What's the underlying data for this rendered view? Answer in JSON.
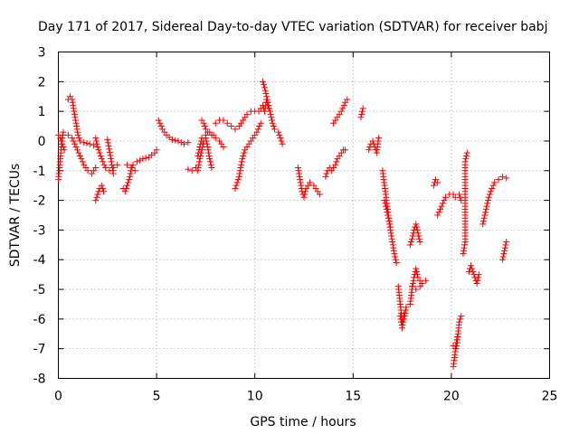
{
  "chart_data": {
    "type": "scatter",
    "title": "Day 171 of 2017, Sidereal Day-to-day VTEC variation (SDTVAR) for receiver babj",
    "xlabel": "GPS time / hours",
    "ylabel": "SDTVAR / TECUs",
    "xlim": [
      0,
      25
    ],
    "ylim": [
      -8,
      3
    ],
    "xticks": [
      0,
      5,
      10,
      15,
      20,
      25
    ],
    "yticks": [
      -8,
      -7,
      -6,
      -5,
      -4,
      -3,
      -2,
      -1,
      0,
      1,
      2,
      3
    ],
    "grid": true,
    "marker": "+",
    "color": "#ff0000",
    "series": [
      {
        "name": "SDTVAR",
        "segments": [
          [
            [
              0.0,
              -1.3
            ],
            [
              0.05,
              -1.0
            ],
            [
              0.1,
              -0.6
            ],
            [
              0.15,
              -0.2
            ],
            [
              0.2,
              0.1
            ],
            [
              0.25,
              0.3
            ]
          ],
          [
            [
              0.0,
              0.2
            ],
            [
              0.1,
              0.1
            ],
            [
              0.2,
              -0.1
            ],
            [
              0.3,
              -0.3
            ]
          ],
          [
            [
              0.5,
              0.2
            ],
            [
              0.7,
              0.1
            ],
            [
              0.9,
              -0.2
            ],
            [
              1.1,
              -0.5
            ],
            [
              1.3,
              -0.8
            ],
            [
              1.5,
              -1.0
            ],
            [
              1.7,
              -1.1
            ],
            [
              1.9,
              -0.9
            ]
          ],
          [
            [
              0.5,
              1.4
            ],
            [
              0.6,
              1.5
            ],
            [
              0.7,
              1.4
            ],
            [
              0.8,
              1.0
            ],
            [
              0.9,
              0.6
            ],
            [
              1.0,
              0.2
            ],
            [
              1.1,
              0.0
            ],
            [
              1.3,
              -0.05
            ],
            [
              1.6,
              -0.1
            ],
            [
              1.8,
              -0.15
            ]
          ],
          [
            [
              1.9,
              -2.0
            ],
            [
              2.0,
              -1.8
            ],
            [
              2.1,
              -1.6
            ],
            [
              2.2,
              -1.5
            ],
            [
              2.3,
              -1.7
            ]
          ],
          [
            [
              1.9,
              0.1
            ],
            [
              2.0,
              -0.2
            ],
            [
              2.1,
              -0.4
            ],
            [
              2.2,
              -0.6
            ],
            [
              2.4,
              -0.9
            ],
            [
              2.6,
              -1.0
            ],
            [
              2.8,
              -0.9
            ],
            [
              3.0,
              -0.8
            ]
          ],
          [
            [
              2.5,
              0.05
            ],
            [
              2.7,
              -0.7
            ],
            [
              2.8,
              -1.1
            ]
          ],
          [
            [
              3.3,
              -1.6
            ],
            [
              3.4,
              -1.7
            ],
            [
              3.5,
              -1.5
            ],
            [
              3.6,
              -1.3
            ],
            [
              3.7,
              -1.0
            ],
            [
              3.8,
              -0.8
            ],
            [
              4.0,
              -0.7
            ],
            [
              4.3,
              -0.6
            ],
            [
              4.6,
              -0.55
            ],
            [
              4.9,
              -0.4
            ],
            [
              5.0,
              -0.3
            ]
          ],
          [
            [
              3.5,
              -0.8
            ],
            [
              3.7,
              -0.9
            ],
            [
              3.9,
              -1.0
            ]
          ],
          [
            [
              5.1,
              0.7
            ],
            [
              5.3,
              0.4
            ],
            [
              5.5,
              0.2
            ],
            [
              5.8,
              0.05
            ],
            [
              6.1,
              0.0
            ],
            [
              6.4,
              -0.1
            ],
            [
              6.6,
              -0.05
            ]
          ],
          [
            [
              6.6,
              -0.95
            ],
            [
              6.8,
              -1.0
            ],
            [
              7.0,
              -0.9
            ]
          ],
          [
            [
              7.1,
              -0.5
            ],
            [
              7.2,
              -0.2
            ],
            [
              7.3,
              0.1
            ],
            [
              7.5,
              0.2
            ],
            [
              7.7,
              0.3
            ],
            [
              7.9,
              0.2
            ]
          ],
          [
            [
              7.1,
              -1.0
            ],
            [
              7.2,
              -0.6
            ],
            [
              7.3,
              -0.3
            ],
            [
              7.4,
              0.0
            ],
            [
              7.5,
              0.1
            ],
            [
              7.6,
              -0.2
            ],
            [
              7.7,
              -0.6
            ],
            [
              7.8,
              -0.9
            ]
          ],
          [
            [
              7.3,
              0.7
            ],
            [
              7.4,
              0.6
            ],
            [
              7.5,
              0.4
            ],
            [
              7.6,
              0.3
            ],
            [
              7.8,
              0.2
            ],
            [
              8.0,
              0.1
            ],
            [
              8.2,
              0.0
            ],
            [
              8.4,
              -0.2
            ]
          ],
          [
            [
              8.0,
              0.6
            ],
            [
              8.2,
              0.7
            ],
            [
              8.4,
              0.7
            ],
            [
              8.6,
              0.6
            ],
            [
              8.8,
              0.5
            ],
            [
              9.0,
              0.4
            ],
            [
              9.2,
              0.5
            ],
            [
              9.4,
              0.7
            ],
            [
              9.6,
              0.9
            ],
            [
              9.8,
              1.0
            ],
            [
              10.0,
              1.0
            ],
            [
              10.2,
              1.0
            ],
            [
              10.3,
              1.1
            ]
          ],
          [
            [
              9.0,
              -1.6
            ],
            [
              9.1,
              -1.4
            ],
            [
              9.2,
              -1.2
            ],
            [
              9.3,
              -0.8
            ],
            [
              9.4,
              -0.5
            ],
            [
              9.5,
              -0.3
            ],
            [
              9.7,
              -0.1
            ],
            [
              9.9,
              0.1
            ],
            [
              10.1,
              0.3
            ],
            [
              10.3,
              0.6
            ]
          ],
          [
            [
              10.4,
              2.0
            ],
            [
              10.5,
              1.8
            ],
            [
              10.6,
              1.5
            ],
            [
              10.7,
              1.2
            ],
            [
              10.8,
              0.9
            ],
            [
              10.9,
              0.6
            ],
            [
              11.0,
              0.4
            ]
          ],
          [
            [
              10.4,
              1.2
            ],
            [
              10.5,
              1.0
            ],
            [
              10.6,
              1.4
            ],
            [
              10.7,
              1.1
            ]
          ],
          [
            [
              11.2,
              0.3
            ],
            [
              11.3,
              0.1
            ],
            [
              11.4,
              -0.1
            ]
          ],
          [
            [
              12.2,
              -0.9
            ],
            [
              12.3,
              -1.3
            ],
            [
              12.4,
              -1.7
            ],
            [
              12.5,
              -1.9
            ],
            [
              12.6,
              -1.6
            ],
            [
              12.8,
              -1.4
            ],
            [
              13.0,
              -1.5
            ],
            [
              13.2,
              -1.7
            ],
            [
              13.3,
              -1.8
            ]
          ],
          [
            [
              13.6,
              -1.2
            ],
            [
              13.7,
              -1.0
            ],
            [
              13.8,
              -0.9
            ],
            [
              13.9,
              -1.0
            ],
            [
              14.1,
              -0.8
            ],
            [
              14.2,
              -0.6
            ],
            [
              14.3,
              -0.5
            ],
            [
              14.5,
              -0.3
            ],
            [
              14.6,
              -0.3
            ]
          ],
          [
            [
              14.0,
              0.6
            ],
            [
              14.2,
              0.8
            ],
            [
              14.4,
              1.0
            ],
            [
              14.6,
              1.3
            ],
            [
              14.7,
              1.4
            ]
          ],
          [
            [
              15.4,
              0.8
            ],
            [
              15.5,
              1.1
            ]
          ],
          [
            [
              15.8,
              -0.3
            ],
            [
              15.9,
              -0.1
            ],
            [
              16.0,
              0.0
            ],
            [
              16.1,
              -0.2
            ],
            [
              16.2,
              -0.4
            ],
            [
              16.3,
              0.1
            ]
          ],
          [
            [
              16.5,
              -1.0
            ],
            [
              16.6,
              -1.5
            ],
            [
              16.7,
              -2.0
            ],
            [
              16.8,
              -2.5
            ],
            [
              16.9,
              -3.0
            ],
            [
              17.0,
              -3.4
            ],
            [
              17.1,
              -3.8
            ],
            [
              17.2,
              -4.1
            ]
          ],
          [
            [
              16.6,
              -2.0
            ],
            [
              16.7,
              -2.3
            ],
            [
              16.8,
              -2.6
            ],
            [
              16.9,
              -2.9
            ]
          ],
          [
            [
              17.3,
              -4.9
            ],
            [
              17.4,
              -5.5
            ],
            [
              17.5,
              -6.1
            ],
            [
              17.6,
              -6.0
            ],
            [
              17.7,
              -5.6
            ]
          ],
          [
            [
              17.4,
              -5.9
            ],
            [
              17.5,
              -6.3
            ],
            [
              17.6,
              -5.8
            ]
          ],
          [
            [
              17.9,
              -3.5
            ],
            [
              18.0,
              -3.3
            ],
            [
              18.1,
              -3.0
            ],
            [
              18.2,
              -2.8
            ],
            [
              18.3,
              -3.1
            ],
            [
              18.4,
              -3.4
            ]
          ],
          [
            [
              17.9,
              -5.5
            ],
            [
              18.0,
              -5.0
            ],
            [
              18.1,
              -4.6
            ],
            [
              18.2,
              -4.3
            ],
            [
              18.3,
              -4.6
            ],
            [
              18.5,
              -4.8
            ],
            [
              18.7,
              -4.7
            ]
          ],
          [
            [
              18.0,
              -4.9
            ],
            [
              18.2,
              -5.0
            ],
            [
              18.4,
              -4.9
            ]
          ],
          [
            [
              19.1,
              -1.5
            ],
            [
              19.2,
              -1.3
            ],
            [
              19.3,
              -1.4
            ]
          ],
          [
            [
              19.3,
              -2.5
            ],
            [
              19.5,
              -2.2
            ],
            [
              19.7,
              -1.9
            ],
            [
              19.9,
              -1.8
            ],
            [
              20.1,
              -1.8
            ],
            [
              20.2,
              -1.9
            ],
            [
              20.4,
              -1.8
            ],
            [
              20.5,
              -2.0
            ]
          ],
          [
            [
              20.1,
              -7.6
            ],
            [
              20.2,
              -7.1
            ],
            [
              20.3,
              -6.8
            ],
            [
              20.4,
              -6.1
            ],
            [
              20.5,
              -5.9
            ]
          ],
          [
            [
              20.1,
              -6.9
            ],
            [
              20.2,
              -7.0
            ],
            [
              20.3,
              -6.6
            ]
          ],
          [
            [
              20.6,
              -3.8
            ],
            [
              20.7,
              -3.4
            ],
            [
              20.7,
              -0.7
            ],
            [
              20.8,
              -0.4
            ]
          ],
          [
            [
              20.9,
              -4.4
            ],
            [
              21.0,
              -4.2
            ],
            [
              21.2,
              -4.6
            ],
            [
              21.3,
              -4.8
            ],
            [
              21.4,
              -4.5
            ]
          ],
          [
            [
              21.6,
              -2.8
            ],
            [
              21.7,
              -2.5
            ],
            [
              21.8,
              -2.2
            ],
            [
              21.9,
              -1.9
            ],
            [
              22.0,
              -1.7
            ],
            [
              22.2,
              -1.4
            ],
            [
              22.4,
              -1.3
            ],
            [
              22.6,
              -1.2
            ],
            [
              22.8,
              -1.25
            ]
          ],
          [
            [
              22.6,
              -4.0
            ],
            [
              22.7,
              -3.7
            ],
            [
              22.8,
              -3.4
            ]
          ]
        ]
      }
    ]
  }
}
